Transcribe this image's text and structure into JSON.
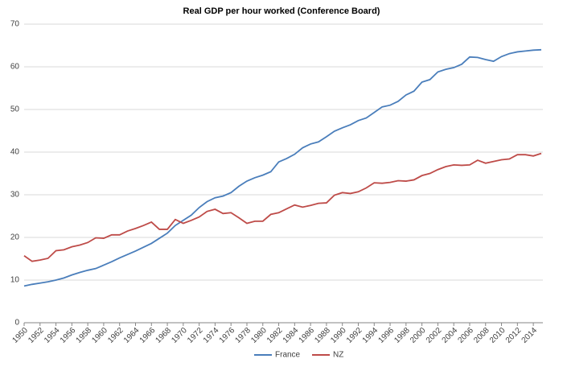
{
  "chart_data": {
    "type": "line",
    "title": "Real GDP per hour worked  (Conference Board)",
    "x": [
      1950,
      1951,
      1952,
      1953,
      1954,
      1955,
      1956,
      1957,
      1958,
      1959,
      1960,
      1961,
      1962,
      1963,
      1964,
      1965,
      1966,
      1967,
      1968,
      1969,
      1970,
      1971,
      1972,
      1973,
      1974,
      1975,
      1976,
      1977,
      1978,
      1979,
      1980,
      1981,
      1982,
      1983,
      1984,
      1985,
      1986,
      1987,
      1988,
      1989,
      1990,
      1991,
      1992,
      1993,
      1994,
      1995,
      1996,
      1997,
      1998,
      1999,
      2000,
      2001,
      2002,
      2003,
      2004,
      2005,
      2006,
      2007,
      2008,
      2009,
      2010,
      2011,
      2012,
      2013,
      2014,
      2015
    ],
    "series": [
      {
        "name": "France",
        "color": "#4a7ebb",
        "values": [
          8.6,
          9.0,
          9.3,
          9.6,
          10.0,
          10.5,
          11.2,
          11.8,
          12.3,
          12.7,
          13.5,
          14.3,
          15.2,
          16.0,
          16.8,
          17.7,
          18.6,
          19.8,
          21.0,
          22.8,
          24.0,
          25.2,
          27.0,
          28.4,
          29.3,
          29.7,
          30.5,
          32.0,
          33.2,
          34.0,
          34.6,
          35.4,
          37.7,
          38.5,
          39.5,
          41.0,
          41.9,
          42.4,
          43.6,
          44.9,
          45.7,
          46.4,
          47.4,
          48.0,
          49.3,
          50.6,
          51.0,
          51.9,
          53.4,
          54.3,
          56.4,
          57.0,
          58.8,
          59.4,
          59.8,
          60.6,
          62.3,
          62.2,
          61.7,
          61.3,
          62.4,
          63.1,
          63.5,
          63.7,
          63.9,
          64.0
        ]
      },
      {
        "name": "NZ",
        "color": "#be4b48",
        "values": [
          15.7,
          14.4,
          14.7,
          15.1,
          16.9,
          17.1,
          17.8,
          18.2,
          18.8,
          19.9,
          19.8,
          20.6,
          20.6,
          21.5,
          22.1,
          22.8,
          23.6,
          21.9,
          21.9,
          24.2,
          23.3,
          24.0,
          24.8,
          26.1,
          26.6,
          25.6,
          25.8,
          24.6,
          23.3,
          23.8,
          23.8,
          25.4,
          25.8,
          26.7,
          27.6,
          27.1,
          27.5,
          28.0,
          28.1,
          29.9,
          30.5,
          30.3,
          30.7,
          31.6,
          32.8,
          32.7,
          32.9,
          33.3,
          33.2,
          33.5,
          34.5,
          35.0,
          35.9,
          36.6,
          37.0,
          36.9,
          37.0,
          38.1,
          37.4,
          37.8,
          38.2,
          38.4,
          39.4,
          39.4,
          39.1,
          39.7
        ]
      }
    ],
    "xlim": [
      1950,
      2015
    ],
    "xticks": [
      1950,
      1952,
      1954,
      1956,
      1958,
      1960,
      1962,
      1964,
      1966,
      1968,
      1970,
      1972,
      1974,
      1976,
      1978,
      1980,
      1982,
      1984,
      1986,
      1988,
      1990,
      1992,
      1994,
      1996,
      1998,
      2000,
      2002,
      2004,
      2006,
      2008,
      2010,
      2012,
      2014
    ],
    "ylim": [
      0,
      70
    ],
    "yticks": [
      0,
      10,
      20,
      30,
      40,
      50,
      60,
      70
    ],
    "grid": true,
    "legend": "bottom"
  }
}
